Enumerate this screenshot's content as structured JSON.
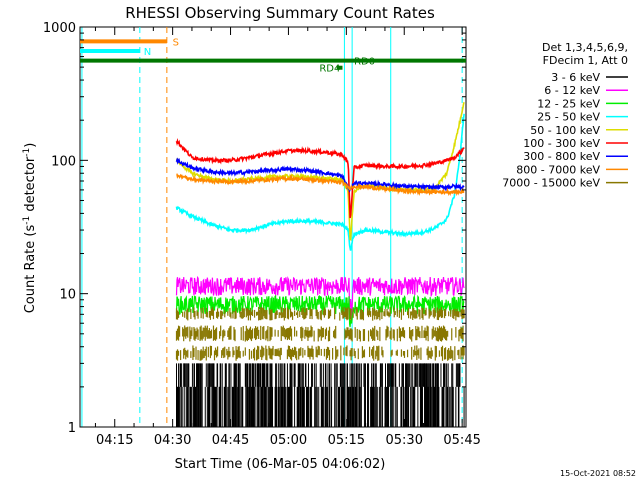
{
  "chart_data": {
    "type": "line",
    "title": "RHESSI Observing Summary Count Rates",
    "xlabel": "Start Time (06-Mar-05 04:06:02)",
    "ylabel": "Count Rate (s-1 detector-1)",
    "ylabel_parts": {
      "main": "Count Rate (s",
      "sup1": "-1",
      "mid": " detector",
      "sup2": "-1",
      "end": ")"
    },
    "yscale": "log",
    "ylim": [
      1,
      1000
    ],
    "y_ticks": [
      {
        "value": 1,
        "label": "1"
      },
      {
        "value": 10,
        "label": "10"
      },
      {
        "value": 100,
        "label": "100"
      },
      {
        "value": 1000,
        "label": "1000"
      }
    ],
    "xlim": [
      6,
      106
    ],
    "x_ticks": [
      {
        "value": 15,
        "label": "04:15"
      },
      {
        "value": 30,
        "label": "04:30"
      },
      {
        "value": 45,
        "label": "04:45"
      },
      {
        "value": 60,
        "label": "05:00"
      },
      {
        "value": 75,
        "label": "05:15"
      },
      {
        "value": 90,
        "label": "05:30"
      },
      {
        "value": 105,
        "label": "05:45"
      }
    ],
    "legend_header": [
      "Det 1,3,4,5,6,9,",
      "FDecim 1, Att 0"
    ],
    "series": [
      {
        "name": "3 - 6 keV",
        "color": "#000000",
        "kind": "low",
        "band": [
          1,
          3
        ]
      },
      {
        "name": "6 - 12 keV",
        "color": "#ff00ff",
        "kind": "noisy",
        "base": 11.5,
        "noise": 0.08
      },
      {
        "name": "12 - 25 keV",
        "color": "#00ee00",
        "kind": "noisy",
        "base": 8.3,
        "noise": 0.08
      },
      {
        "name": "25 - 50 keV",
        "color": "#00ffff",
        "kind": "smooth",
        "values": [
          [
            31,
            44
          ],
          [
            35,
            38
          ],
          [
            40,
            33
          ],
          [
            45,
            30
          ],
          [
            50,
            30
          ],
          [
            55,
            33
          ],
          [
            60,
            35
          ],
          [
            65,
            35
          ],
          [
            70,
            34
          ],
          [
            74,
            33
          ],
          [
            75.5,
            30
          ],
          [
            76,
            21
          ],
          [
            77,
            28
          ],
          [
            80,
            30
          ],
          [
            85,
            29
          ],
          [
            90,
            28
          ],
          [
            95,
            29
          ],
          [
            98,
            31
          ],
          [
            101,
            36
          ],
          [
            103,
            55
          ],
          [
            104.5,
            110
          ],
          [
            105.5,
            230
          ]
        ]
      },
      {
        "name": "50 - 100 keV",
        "color": "#dddd00",
        "kind": "smooth",
        "values": [
          [
            31,
            100
          ],
          [
            35,
            80
          ],
          [
            40,
            72
          ],
          [
            45,
            70
          ],
          [
            50,
            72
          ],
          [
            55,
            75
          ],
          [
            60,
            76
          ],
          [
            65,
            75
          ],
          [
            70,
            73
          ],
          [
            74,
            72
          ],
          [
            75.5,
            58
          ],
          [
            76,
            24
          ],
          [
            77,
            58
          ],
          [
            80,
            65
          ],
          [
            85,
            62
          ],
          [
            90,
            60
          ],
          [
            95,
            60
          ],
          [
            98,
            62
          ],
          [
            101,
            80
          ],
          [
            103,
            130
          ],
          [
            104.5,
            200
          ],
          [
            105.5,
            280
          ]
        ]
      },
      {
        "name": "100 - 300 keV",
        "color": "#ff0000",
        "kind": "smooth",
        "values": [
          [
            31,
            140
          ],
          [
            35,
            105
          ],
          [
            40,
            100
          ],
          [
            45,
            100
          ],
          [
            50,
            105
          ],
          [
            55,
            112
          ],
          [
            60,
            118
          ],
          [
            65,
            118
          ],
          [
            70,
            115
          ],
          [
            74,
            110
          ],
          [
            75.5,
            95
          ],
          [
            76,
            35
          ],
          [
            77,
            88
          ],
          [
            80,
            92
          ],
          [
            85,
            90
          ],
          [
            90,
            90
          ],
          [
            95,
            92
          ],
          [
            98,
            95
          ],
          [
            101,
            100
          ],
          [
            103,
            105
          ],
          [
            104.5,
            115
          ],
          [
            105.5,
            125
          ]
        ]
      },
      {
        "name": "300 - 800 keV",
        "color": "#0000ff",
        "kind": "smooth",
        "values": [
          [
            31,
            100
          ],
          [
            35,
            88
          ],
          [
            40,
            82
          ],
          [
            45,
            80
          ],
          [
            50,
            82
          ],
          [
            55,
            84
          ],
          [
            60,
            86
          ],
          [
            65,
            84
          ],
          [
            70,
            80
          ],
          [
            74,
            76
          ],
          [
            75.5,
            62
          ],
          [
            76,
            60
          ],
          [
            77,
            68
          ],
          [
            80,
            67
          ],
          [
            85,
            66
          ],
          [
            90,
            64
          ],
          [
            95,
            63
          ],
          [
            98,
            63
          ],
          [
            101,
            63
          ],
          [
            103,
            64
          ],
          [
            104.5,
            63
          ],
          [
            105.5,
            63
          ]
        ]
      },
      {
        "name": "800 - 7000 keV",
        "color": "#ff8800",
        "kind": "smooth",
        "values": [
          [
            31,
            78
          ],
          [
            35,
            72
          ],
          [
            40,
            70
          ],
          [
            45,
            69
          ],
          [
            50,
            70
          ],
          [
            55,
            72
          ],
          [
            60,
            73
          ],
          [
            65,
            72
          ],
          [
            70,
            70
          ],
          [
            74,
            68
          ],
          [
            75.5,
            63
          ],
          [
            76,
            62
          ],
          [
            77,
            64
          ],
          [
            80,
            63
          ],
          [
            85,
            61
          ],
          [
            90,
            59
          ],
          [
            95,
            58
          ],
          [
            98,
            58
          ],
          [
            101,
            58
          ],
          [
            103,
            58
          ],
          [
            104.5,
            58
          ],
          [
            105.5,
            58
          ]
        ]
      },
      {
        "name": "7000 - 15000 keV",
        "color": "#887700",
        "kind": "band",
        "bands": [
          [
            3.3,
            3.9
          ],
          [
            4.6,
            5.5
          ],
          [
            6.6,
            7.6
          ]
        ]
      }
    ],
    "time_markers": [
      {
        "x": 6.5,
        "color": "#00ffff",
        "dash": false
      },
      {
        "x": 21.5,
        "color": "#00ffff",
        "dash": true
      },
      {
        "x": 28.5,
        "color": "#ff8800",
        "dash": true
      },
      {
        "x": 74.5,
        "color": "#00ffff",
        "dash": false
      },
      {
        "x": 76.5,
        "color": "#00ffff",
        "dash": false
      },
      {
        "x": 86.5,
        "color": "#00ffff",
        "dash": false
      },
      {
        "x": 105,
        "color": "#00ffff",
        "dash": true
      }
    ],
    "flag_bars": [
      {
        "label": "S",
        "color": "#ff8800",
        "x0": 6,
        "x1": 28.5,
        "y": 780,
        "label_x": 30
      },
      {
        "label": "N",
        "color": "#00ffff",
        "x0": 6,
        "x1": 21.5,
        "y": 660,
        "label_x": 22.5
      },
      {
        "label": "RD0",
        "color": "#007700",
        "x0": 6,
        "x1": 106,
        "y": 560,
        "label_x": 77
      },
      {
        "label": "RD4",
        "color": "#007700",
        "x0": 72.5,
        "x1": 74,
        "y": 495,
        "label_x": 68
      }
    ],
    "corner_date": "15-Oct-2021 08:52",
    "grid": false
  }
}
